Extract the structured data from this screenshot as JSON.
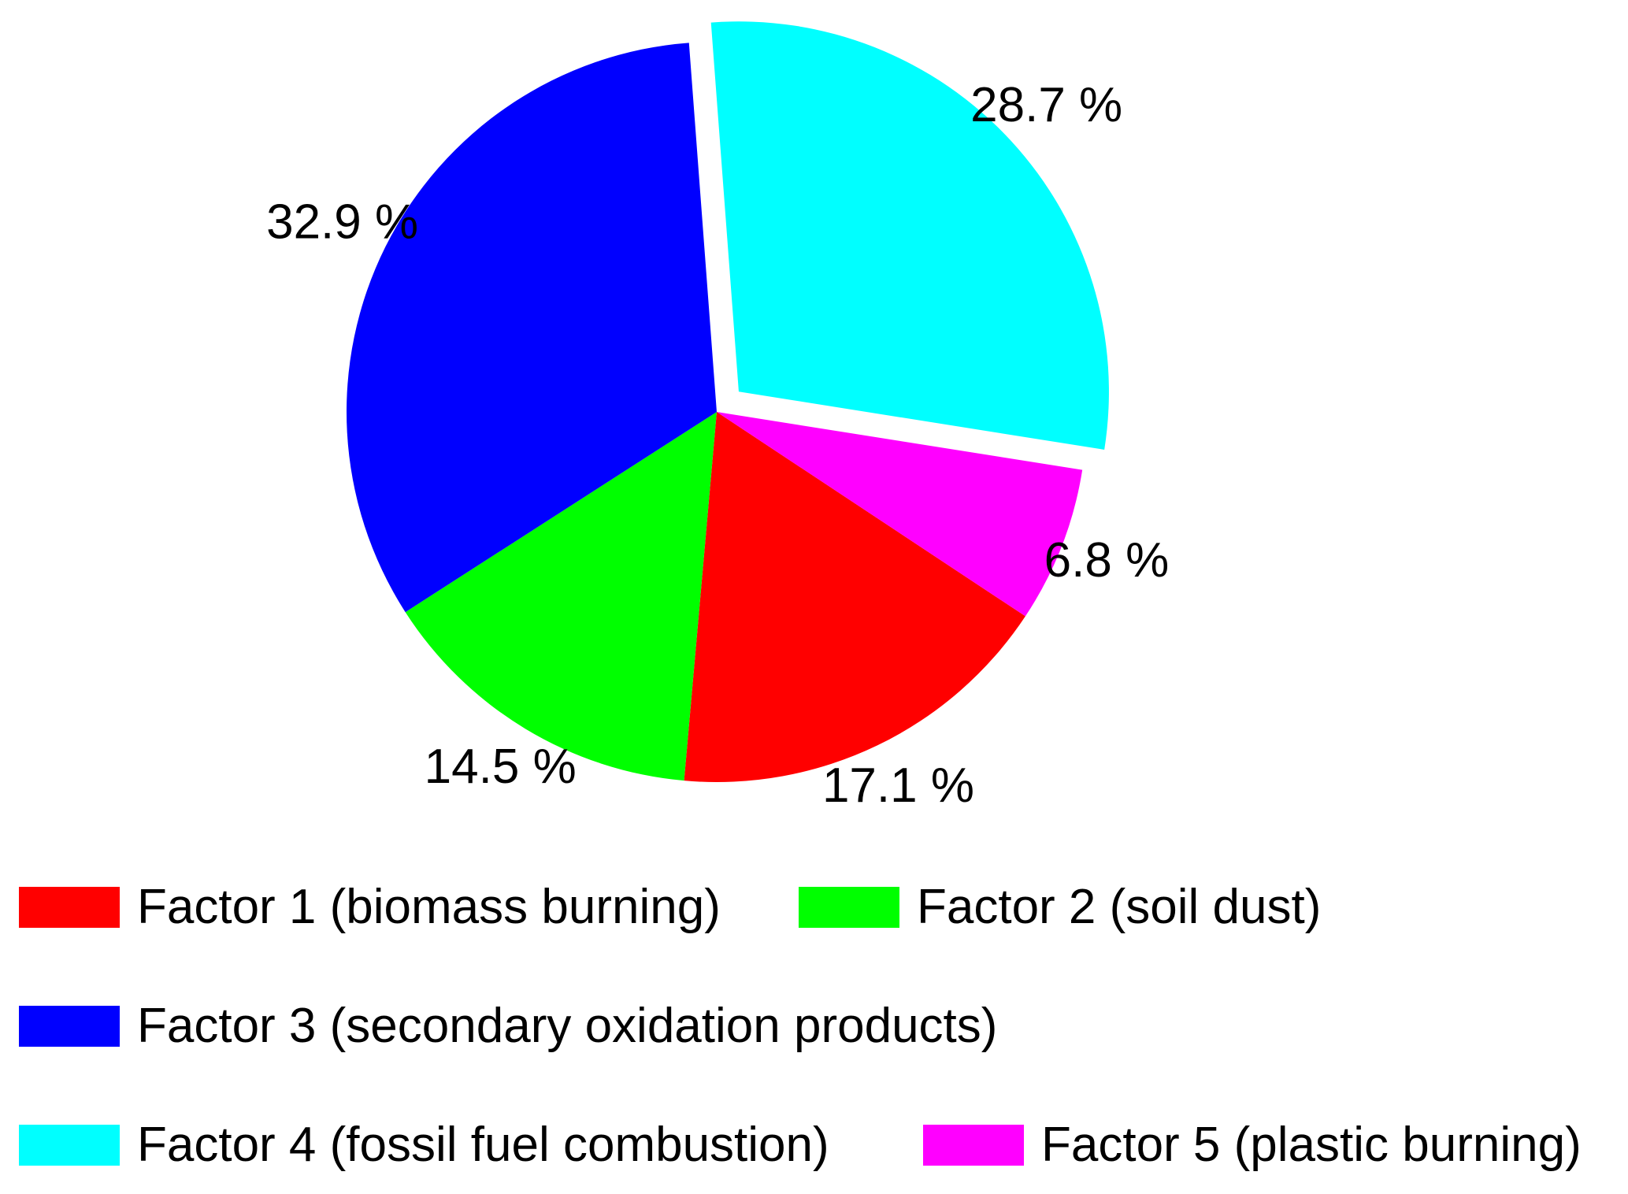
{
  "chart_data": {
    "type": "pie",
    "slices": [
      {
        "name": "Factor 1 (biomass burning)",
        "value": 17.1,
        "label": "17.1 %",
        "color": "#ff0000",
        "exploded": false
      },
      {
        "name": "Factor 2 (soil dust)",
        "value": 14.5,
        "label": "14.5 %",
        "color": "#00ff00",
        "exploded": false
      },
      {
        "name": "Factor 3 (secondary oxidation products)",
        "value": 32.9,
        "label": "32.9 %",
        "color": "#0000ff",
        "exploded": false
      },
      {
        "name": "Factor 4 (fossil fuel combustion)",
        "value": 28.7,
        "label": "28.7 %",
        "color": "#00ffff",
        "exploded": true
      },
      {
        "name": "Factor 5 (plastic burning)",
        "value": 6.8,
        "label": "6.8 %",
        "color": "#ff00ff",
        "exploded": false
      }
    ],
    "legend_placement": "bottom"
  },
  "legend": [
    {
      "label": "Factor 1 (biomass burning)",
      "color": "#ff0000"
    },
    {
      "label": "Factor 2 (soil dust)",
      "color": "#00ff00"
    },
    {
      "label": "Factor 3 (secondary oxidation products)",
      "color": "#0000ff"
    },
    {
      "label": "Factor 4 (fossil fuel combustion)",
      "color": "#00ffff"
    },
    {
      "label": "Factor 5 (plastic burning)",
      "color": "#ff00ff"
    }
  ]
}
